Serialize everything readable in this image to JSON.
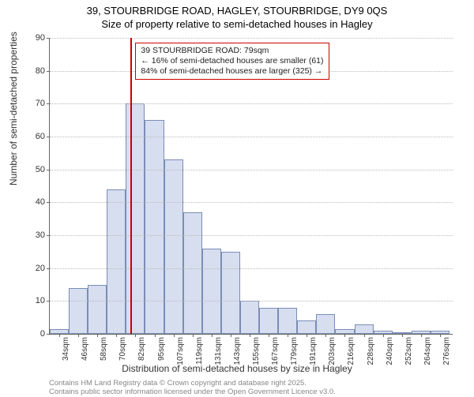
{
  "title_line1": "39, STOURBRIDGE ROAD, HAGLEY, STOURBRIDGE, DY9 0QS",
  "title_line2": "Size of property relative to semi-detached houses in Hagley",
  "ylabel": "Number of semi-detached properties",
  "xlabel": "Distribution of semi-detached houses by size in Hagley",
  "chart": {
    "type": "histogram",
    "ylim": [
      0,
      90
    ],
    "ytick_step": 10,
    "yticks": [
      0,
      10,
      20,
      30,
      40,
      50,
      60,
      70,
      80,
      90
    ],
    "bar_fill": "#d6deef",
    "bar_stroke": "#7b8db5",
    "grid_color": "#bbbbbb",
    "background": "#ffffff",
    "highlight_line_color": "#cc0000",
    "highlight_x_value": 79,
    "x_start": 28,
    "x_end": 282,
    "bin_width": 12,
    "categories": [
      "34sqm",
      "46sqm",
      "58sqm",
      "70sqm",
      "82sqm",
      "95sqm",
      "107sqm",
      "119sqm",
      "131sqm",
      "143sqm",
      "155sqm",
      "167sqm",
      "179sqm",
      "191sqm",
      "203sqm",
      "216sqm",
      "228sqm",
      "240sqm",
      "252sqm",
      "264sqm",
      "276sqm"
    ],
    "values": [
      1.5,
      14,
      15,
      44,
      70,
      65,
      53,
      37,
      26,
      25,
      10,
      8,
      8,
      4,
      6,
      1.5,
      3,
      1,
      0,
      1,
      1
    ]
  },
  "annotation": {
    "line1": "39 STOURBRIDGE ROAD: 79sqm",
    "line2": "← 16% of semi-detached houses are smaller (61)",
    "line3": "84% of semi-detached houses are larger (325) →"
  },
  "credits_line1": "Contains HM Land Registry data © Crown copyright and database right 2025.",
  "credits_line2": "Contains public sector information licensed under the Open Government Licence v3.0."
}
